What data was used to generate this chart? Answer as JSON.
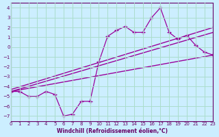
{
  "bg_color": "#cceeff",
  "grid_color": "#aaddcc",
  "line_color": "#990099",
  "xlim": [
    0,
    23
  ],
  "ylim": [
    -7.5,
    4.5
  ],
  "xticks": [
    0,
    1,
    2,
    3,
    4,
    5,
    6,
    7,
    8,
    9,
    10,
    11,
    12,
    13,
    14,
    15,
    16,
    17,
    18,
    19,
    20,
    21,
    22,
    23
  ],
  "yticks": [
    -7,
    -6,
    -5,
    -4,
    -3,
    -2,
    -1,
    0,
    1,
    2,
    3,
    4
  ],
  "xlabel": "Windchill (Refroidissement éolien,°C)",
  "scatter_x": [
    0,
    1,
    2,
    3,
    4,
    5,
    6,
    7,
    8,
    9,
    10,
    11,
    12,
    13,
    14,
    15,
    16,
    17,
    18,
    19,
    20,
    21,
    22,
    23
  ],
  "scatter_y": [
    -4.5,
    -4.5,
    -5.0,
    -5.0,
    -4.5,
    -4.8,
    -7.0,
    -6.8,
    -5.5,
    -5.5,
    -1.5,
    1.1,
    1.7,
    2.1,
    1.5,
    1.5,
    3.0,
    4.0,
    1.5,
    0.8,
    1.2,
    0.2,
    -0.5,
    -0.8
  ],
  "line1_x": [
    0,
    23
  ],
  "line1_y": [
    -4.5,
    -0.8
  ],
  "line2_x": [
    0,
    23
  ],
  "line2_y": [
    -4.5,
    1.5
  ],
  "line3_x": [
    0,
    23
  ],
  "line3_y": [
    -4.3,
    2.0
  ],
  "font_color": "#660066"
}
